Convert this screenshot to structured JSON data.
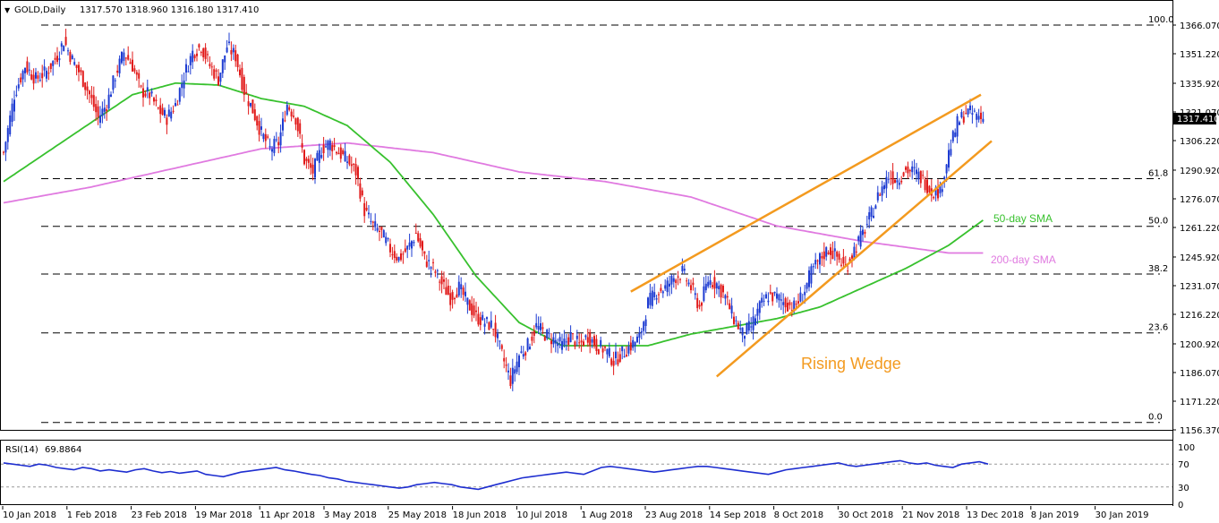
{
  "header": {
    "symbol_label": "GOLD,Daily",
    "ohlc": "1317.570 1318.960 1316.180 1317.410"
  },
  "rsi_header": {
    "label": "RSI(14)",
    "value": "69.8864"
  },
  "price_tag": "1317.410",
  "annotations": {
    "pattern": "Rising Wedge",
    "sma50": "50-day SMA",
    "sma200": "200-day SMA"
  },
  "colors": {
    "bull": "#1e3cd2",
    "bear": "#e11a1a",
    "sma50": "#38c12e",
    "sma200": "#e07ae0",
    "wedge": "#f39a1f",
    "rsi": "#1e2ed0"
  },
  "chart_data": [
    {
      "type": "candlestick",
      "ylim": [
        1156.37,
        1370
      ],
      "y_ticks": [
        "1366.070",
        "1351.220",
        "1335.920",
        "1321.070",
        "1306.220",
        "1290.920",
        "1276.070",
        "1261.220",
        "1245.920",
        "1231.070",
        "1216.220",
        "1200.920",
        "1186.070",
        "1171.220",
        "1156.370"
      ],
      "x_ticks": [
        "10 Jan 2018",
        "1 Feb 2018",
        "23 Feb 2018",
        "19 Mar 2018",
        "11 Apr 2018",
        "3 May 2018",
        "25 May 2018",
        "18 Jun 2018",
        "10 Jul 2018",
        "1 Aug 2018",
        "23 Aug 2018",
        "14 Sep 2018",
        "8 Oct 2018",
        "30 Oct 2018",
        "21 Nov 2018",
        "13 Dec 2018",
        "8 Jan 2019",
        "30 Jan 2019"
      ],
      "fib_levels": [
        {
          "label": "100.0",
          "price": 1366.07
        },
        {
          "label": "61.8",
          "price": 1286.5
        },
        {
          "label": "50.0",
          "price": 1261.8
        },
        {
          "label": "38.2",
          "price": 1237.1
        },
        {
          "label": "23.6",
          "price": 1206.6
        },
        {
          "label": "0.0",
          "price": 1160.2
        }
      ],
      "price_path": [
        [
          0,
          1300
        ],
        [
          5,
          1330
        ],
        [
          10,
          1345
        ],
        [
          15,
          1338
        ],
        [
          20,
          1342
        ],
        [
          25,
          1350
        ],
        [
          28,
          1358
        ],
        [
          32,
          1348
        ],
        [
          36,
          1340
        ],
        [
          40,
          1330
        ],
        [
          44,
          1318
        ],
        [
          48,
          1325
        ],
        [
          52,
          1340
        ],
        [
          56,
          1352
        ],
        [
          60,
          1345
        ],
        [
          64,
          1332
        ],
        [
          68,
          1330
        ],
        [
          72,
          1322
        ],
        [
          76,
          1318
        ],
        [
          80,
          1325
        ],
        [
          84,
          1340
        ],
        [
          88,
          1352
        ],
        [
          92,
          1355
        ],
        [
          96,
          1345
        ],
        [
          100,
          1338
        ],
        [
          104,
          1355
        ],
        [
          108,
          1350
        ],
        [
          112,
          1332
        ],
        [
          116,
          1322
        ],
        [
          120,
          1310
        ],
        [
          124,
          1302
        ],
        [
          128,
          1305
        ],
        [
          132,
          1325
        ],
        [
          136,
          1318
        ],
        [
          140,
          1296
        ],
        [
          144,
          1290
        ],
        [
          148,
          1302
        ],
        [
          152,
          1305
        ],
        [
          156,
          1300
        ],
        [
          160,
          1296
        ],
        [
          164,
          1290
        ],
        [
          168,
          1270
        ],
        [
          172,
          1262
        ],
        [
          176,
          1258
        ],
        [
          180,
          1250
        ],
        [
          184,
          1245
        ],
        [
          188,
          1250
        ],
        [
          192,
          1258
        ],
        [
          196,
          1245
        ],
        [
          200,
          1240
        ],
        [
          204,
          1232
        ],
        [
          208,
          1225
        ],
        [
          212,
          1230
        ],
        [
          216,
          1222
        ],
        [
          220,
          1215
        ],
        [
          224,
          1212
        ],
        [
          228,
          1210
        ],
        [
          232,
          1195
        ],
        [
          236,
          1182
        ],
        [
          240,
          1195
        ],
        [
          244,
          1200
        ],
        [
          248,
          1210
        ],
        [
          252,
          1206
        ],
        [
          256,
          1203
        ],
        [
          260,
          1200
        ],
        [
          264,
          1205
        ],
        [
          268,
          1200
        ],
        [
          272,
          1205
        ],
        [
          276,
          1200
        ],
        [
          280,
          1198
        ],
        [
          284,
          1192
        ],
        [
          288,
          1196
        ],
        [
          292,
          1200
        ],
        [
          296,
          1204
        ],
        [
          300,
          1222
        ],
        [
          304,
          1228
        ],
        [
          308,
          1230
        ],
        [
          312,
          1235
        ],
        [
          316,
          1238
        ],
        [
          320,
          1230
        ],
        [
          324,
          1220
        ],
        [
          328,
          1234
        ],
        [
          332,
          1232
        ],
        [
          336,
          1225
        ],
        [
          340,
          1214
        ],
        [
          344,
          1206
        ],
        [
          348,
          1210
        ],
        [
          352,
          1220
        ],
        [
          356,
          1226
        ],
        [
          360,
          1225
        ],
        [
          364,
          1222
        ],
        [
          368,
          1220
        ],
        [
          372,
          1226
        ],
        [
          376,
          1238
        ],
        [
          380,
          1245
        ],
        [
          384,
          1250
        ],
        [
          388,
          1246
        ],
        [
          392,
          1240
        ],
        [
          396,
          1250
        ],
        [
          400,
          1258
        ],
        [
          404,
          1268
        ],
        [
          408,
          1280
        ],
        [
          412,
          1288
        ],
        [
          416,
          1286
        ],
        [
          420,
          1291
        ],
        [
          424,
          1290
        ],
        [
          428,
          1286
        ],
        [
          432,
          1280
        ],
        [
          436,
          1280
        ],
        [
          440,
          1300
        ],
        [
          444,
          1315
        ],
        [
          448,
          1321
        ],
        [
          452,
          1320
        ],
        [
          456,
          1317.4
        ]
      ],
      "sma50_path": [
        [
          0,
          1285
        ],
        [
          20,
          1300
        ],
        [
          40,
          1315
        ],
        [
          60,
          1330
        ],
        [
          80,
          1336
        ],
        [
          100,
          1335
        ],
        [
          120,
          1328
        ],
        [
          140,
          1324
        ],
        [
          160,
          1314
        ],
        [
          180,
          1295
        ],
        [
          200,
          1268
        ],
        [
          220,
          1236
        ],
        [
          240,
          1212
        ],
        [
          260,
          1200
        ],
        [
          280,
          1200
        ],
        [
          300,
          1200
        ],
        [
          320,
          1206
        ],
        [
          340,
          1210
        ],
        [
          360,
          1214
        ],
        [
          380,
          1220
        ],
        [
          400,
          1230
        ],
        [
          420,
          1240
        ],
        [
          440,
          1252
        ],
        [
          456,
          1265
        ]
      ],
      "sma200_path": [
        [
          0,
          1274
        ],
        [
          40,
          1282
        ],
        [
          80,
          1292
        ],
        [
          120,
          1302
        ],
        [
          160,
          1305
        ],
        [
          200,
          1300
        ],
        [
          240,
          1290
        ],
        [
          280,
          1285
        ],
        [
          320,
          1277
        ],
        [
          360,
          1262
        ],
        [
          400,
          1254
        ],
        [
          440,
          1248
        ],
        [
          456,
          1248
        ]
      ],
      "wedge_upper": [
        [
          292,
          1228
        ],
        [
          455,
          1330
        ]
      ],
      "wedge_lower": [
        [
          332,
          1184
        ],
        [
          460,
          1306
        ]
      ]
    },
    {
      "type": "line",
      "title": "RSI(14)",
      "ylim": [
        0,
        100
      ],
      "y_ticks": [
        "100",
        "70",
        "30",
        "0"
      ],
      "guide_levels": [
        70,
        30
      ],
      "values": [
        72,
        70,
        68,
        66,
        70,
        68,
        64,
        62,
        60,
        64,
        62,
        58,
        60,
        58,
        56,
        60,
        62,
        58,
        55,
        57,
        54,
        56,
        58,
        52,
        50,
        48,
        52,
        56,
        58,
        60,
        62,
        64,
        60,
        58,
        55,
        52,
        50,
        46,
        44,
        40,
        38,
        36,
        34,
        32,
        30,
        28,
        30,
        34,
        36,
        38,
        36,
        34,
        30,
        28,
        26,
        30,
        34,
        38,
        42,
        46,
        48,
        50,
        52,
        54,
        56,
        54,
        52,
        58,
        64,
        66,
        64,
        62,
        60,
        58,
        56,
        58,
        60,
        62,
        64,
        66,
        66,
        64,
        62,
        60,
        58,
        56,
        54,
        52,
        56,
        60,
        62,
        64,
        66,
        68,
        70,
        72,
        68,
        66,
        68,
        70,
        72,
        74,
        76,
        72,
        70,
        72,
        68,
        66,
        64,
        70,
        72,
        74,
        70
      ]
    }
  ]
}
